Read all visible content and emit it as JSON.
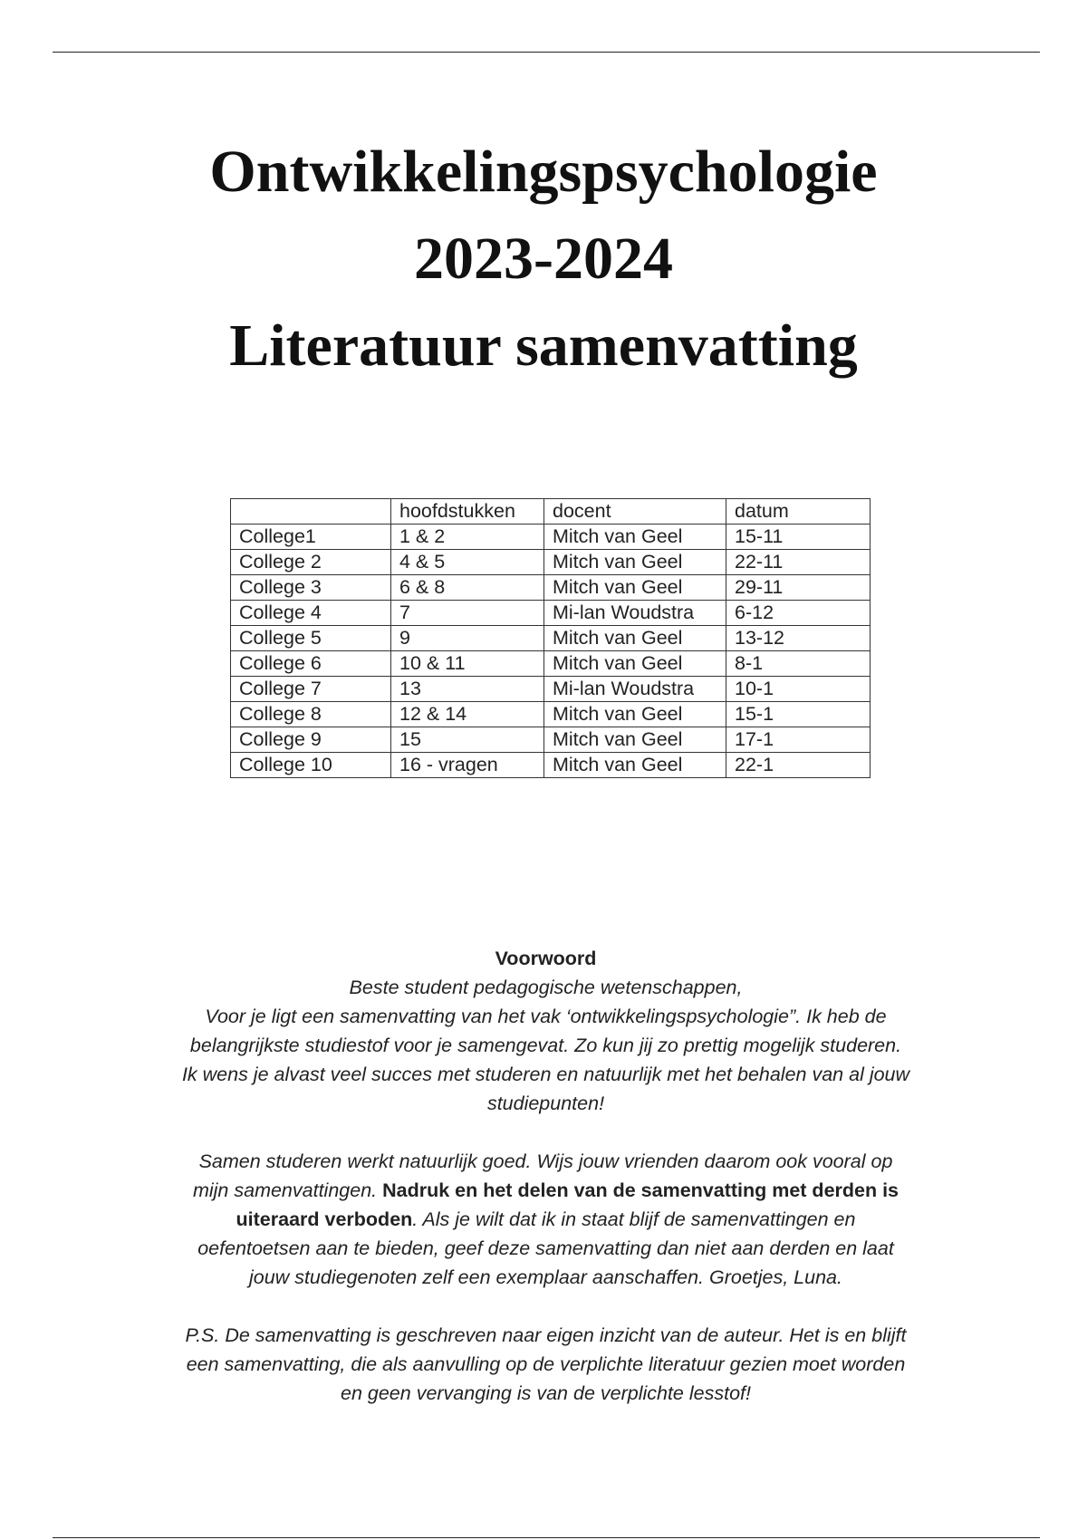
{
  "title_lines": [
    "Ontwikkelingspsychologie",
    "2023-2024",
    "Literatuur samenvatting"
  ],
  "schedule": {
    "headers": [
      "",
      "hoofdstukken",
      "docent",
      "datum"
    ],
    "rows": [
      [
        "College1",
        "1 & 2",
        "Mitch van Geel",
        "15-11"
      ],
      [
        "College 2",
        "4 & 5",
        "Mitch van Geel",
        "22-11"
      ],
      [
        "College 3",
        "6 & 8",
        "Mitch van Geel",
        "29-11"
      ],
      [
        "College 4",
        "7",
        "Mi-lan Woudstra",
        "6-12"
      ],
      [
        "College 5",
        "9",
        "Mitch van Geel",
        "13-12"
      ],
      [
        "College 6",
        "10 & 11",
        "Mitch van Geel",
        "8-1"
      ],
      [
        "College 7",
        "13",
        "Mi-lan Woudstra",
        "10-1"
      ],
      [
        "College 8",
        "12  & 14",
        "Mitch van Geel",
        "15-1"
      ],
      [
        "College 9",
        "15",
        "Mitch van Geel",
        "17-1"
      ],
      [
        "College 10",
        "16 - vragen",
        "Mitch van Geel",
        "22-1"
      ]
    ]
  },
  "preface": {
    "heading": "Voorwoord",
    "p1": [
      "Beste student pedagogische wetenschappen,",
      "Voor je ligt een samenvatting van het vak ‘ontwikkelingspsychologie”. Ik heb de",
      "belangrijkste studiestof voor je samengevat. Zo kun jij zo prettig mogelijk studeren.",
      "Ik wens je alvast veel succes met studeren en natuurlijk met het behalen van al jouw",
      "studiepunten!"
    ],
    "p2": {
      "l1": "Samen studeren werkt natuurlijk goed. Wijs jouw vrienden daarom ook vooral op",
      "l2a": "mijn samenvattingen. ",
      "l2b": "Nadruk en het delen van de samenvatting met derden is",
      "l3a": "uiteraard verboden",
      "l3b": ". Als je wilt dat ik in staat blijf de samenvattingen en",
      "l4": "oefentoetsen aan te bieden, geef deze samenvatting dan niet aan derden en laat",
      "l5": "jouw studiegenoten zelf een exemplaar aanschaffen. Groetjes, Luna."
    },
    "p3": [
      "P.S. De samenvatting is geschreven naar eigen inzicht van de auteur. Het is en blijft",
      "een samenvatting, die als aanvulling op de verplichte literatuur gezien moet worden",
      "en geen vervanging is van de verplichte lesstof!"
    ]
  }
}
